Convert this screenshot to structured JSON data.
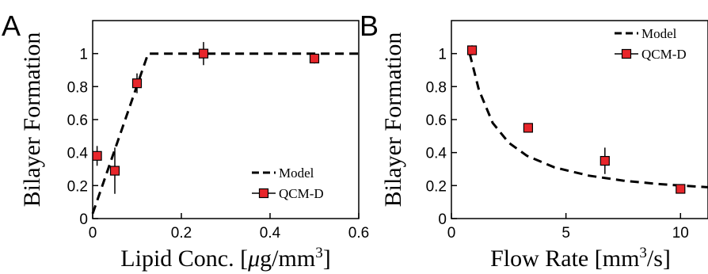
{
  "chart_data": [
    {
      "panel": "A",
      "type": "scatter",
      "xlabel": "Lipid Conc. [μg/mm³]",
      "ylabel": "Bilayer Formation",
      "xlim": [
        0,
        0.6
      ],
      "ylim": [
        0,
        1.2
      ],
      "xticks": [
        "0",
        "0.2",
        "0.4",
        "0.6"
      ],
      "yticks": [
        "0",
        "0.2",
        "0.4",
        "0.6",
        "0.8",
        "1"
      ],
      "legend_position": "bottom-right",
      "series": [
        {
          "name": "Model",
          "kind": "dashed-line",
          "color": "#000000",
          "x": [
            0,
            0.125,
            0.6
          ],
          "y": [
            0.03,
            1.0,
            1.0
          ]
        },
        {
          "name": "QCM-D",
          "kind": "markers",
          "color": "#e8262b",
          "x": [
            0.01,
            0.05,
            0.1,
            0.25,
            0.5
          ],
          "y": [
            0.38,
            0.29,
            0.82,
            1.0,
            0.97
          ],
          "err": [
            0.06,
            0.14,
            0.06,
            0.07,
            0.03
          ]
        }
      ]
    },
    {
      "panel": "B",
      "type": "scatter",
      "xlabel": "Flow Rate [mm³/s]",
      "ylabel": "Bilayer Formation",
      "xlim": [
        0,
        11.2
      ],
      "ylim": [
        0,
        1.2
      ],
      "xticks": [
        "0",
        "5",
        "10"
      ],
      "yticks": [
        "0",
        "0.2",
        "0.4",
        "0.6",
        "0.8",
        "1"
      ],
      "legend_position": "top-right",
      "series": [
        {
          "name": "Model",
          "kind": "dashed-line",
          "color": "#000000",
          "x": [
            0.8,
            1.2,
            1.8,
            2.5,
            3.3,
            4.5,
            6.0,
            7.5,
            9.0,
            10.0,
            11.2
          ],
          "y": [
            1.0,
            0.78,
            0.58,
            0.46,
            0.38,
            0.31,
            0.26,
            0.23,
            0.21,
            0.2,
            0.19
          ]
        },
        {
          "name": "QCM-D",
          "kind": "markers",
          "color": "#e8262b",
          "x": [
            0.9,
            3.35,
            6.7,
            10.0
          ],
          "y": [
            1.02,
            0.55,
            0.35,
            0.18
          ],
          "err": [
            0.03,
            0.02,
            0.08,
            0.02
          ]
        }
      ]
    }
  ]
}
